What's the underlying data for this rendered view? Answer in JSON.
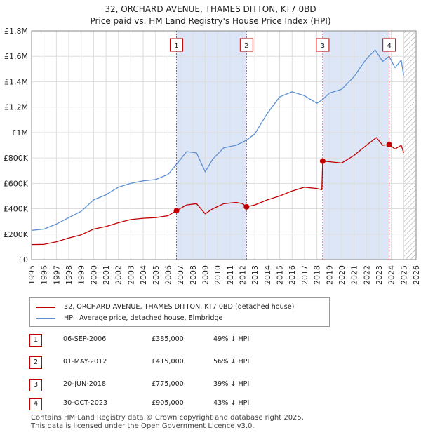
{
  "chart_data": {
    "type": "line",
    "title": "32, ORCHARD AVENUE, THAMES DITTON, KT7 0BD",
    "subtitle": "Price paid vs. HM Land Registry's House Price Index (HPI)",
    "xlim": [
      1995,
      2026
    ],
    "ylim": [
      0,
      1800000
    ],
    "x_ticks": [
      "1995",
      "1996",
      "1997",
      "1998",
      "1999",
      "2000",
      "2001",
      "2002",
      "2003",
      "2004",
      "2005",
      "2006",
      "2007",
      "2008",
      "2009",
      "2010",
      "2011",
      "2012",
      "2013",
      "2014",
      "2015",
      "2016",
      "2017",
      "2018",
      "2019",
      "2020",
      "2021",
      "2022",
      "2023",
      "2024",
      "2025",
      "2026"
    ],
    "y_ticks": [
      {
        "value": 0,
        "label": "£0"
      },
      {
        "value": 200000,
        "label": "£200K"
      },
      {
        "value": 400000,
        "label": "£400K"
      },
      {
        "value": 600000,
        "label": "£600K"
      },
      {
        "value": 800000,
        "label": "£800K"
      },
      {
        "value": 1000000,
        "label": "£1M"
      },
      {
        "value": 1200000,
        "label": "£1.2M"
      },
      {
        "value": 1400000,
        "label": "£1.4M"
      },
      {
        "value": 1600000,
        "label": "£1.6M"
      },
      {
        "value": 1800000,
        "label": "£1.8M"
      }
    ],
    "shaded_ranges": [
      [
        2006.68,
        2012.33
      ],
      [
        2018.47,
        2023.83
      ]
    ],
    "forecast_from": 2025.0,
    "series": [
      {
        "name": "32, ORCHARD AVENUE, THAMES DITTON, KT7 0BD (detached house)",
        "color": "#c00000",
        "points": [
          [
            1995.0,
            118000
          ],
          [
            1996.0,
            120000
          ],
          [
            1997.0,
            140000
          ],
          [
            1998.0,
            170000
          ],
          [
            1999.0,
            195000
          ],
          [
            2000.0,
            240000
          ],
          [
            2001.0,
            260000
          ],
          [
            2002.0,
            290000
          ],
          [
            2003.0,
            315000
          ],
          [
            2004.0,
            325000
          ],
          [
            2005.0,
            330000
          ],
          [
            2006.0,
            345000
          ],
          [
            2006.68,
            385000
          ],
          [
            2007.5,
            430000
          ],
          [
            2008.3,
            440000
          ],
          [
            2009.0,
            360000
          ],
          [
            2009.6,
            400000
          ],
          [
            2010.5,
            440000
          ],
          [
            2011.5,
            450000
          ],
          [
            2012.0,
            440000
          ],
          [
            2012.33,
            415000
          ],
          [
            2013.0,
            430000
          ],
          [
            2014.0,
            470000
          ],
          [
            2015.0,
            500000
          ],
          [
            2016.0,
            540000
          ],
          [
            2017.0,
            570000
          ],
          [
            2018.0,
            560000
          ],
          [
            2018.4,
            550000
          ],
          [
            2018.47,
            775000
          ],
          [
            2019.0,
            770000
          ],
          [
            2020.0,
            760000
          ],
          [
            2021.0,
            820000
          ],
          [
            2022.0,
            900000
          ],
          [
            2022.8,
            960000
          ],
          [
            2023.3,
            900000
          ],
          [
            2023.83,
            905000
          ],
          [
            2024.3,
            870000
          ],
          [
            2024.8,
            900000
          ],
          [
            2025.0,
            840000
          ]
        ]
      },
      {
        "name": "HPI: Average price, detached house, Elmbridge",
        "color": "#5b8fd1",
        "points": [
          [
            1995.0,
            230000
          ],
          [
            1996.0,
            240000
          ],
          [
            1997.0,
            280000
          ],
          [
            1998.0,
            330000
          ],
          [
            1999.0,
            380000
          ],
          [
            2000.0,
            470000
          ],
          [
            2001.0,
            510000
          ],
          [
            2002.0,
            570000
          ],
          [
            2003.0,
            600000
          ],
          [
            2004.0,
            620000
          ],
          [
            2005.0,
            630000
          ],
          [
            2006.0,
            670000
          ],
          [
            2006.68,
            750000
          ],
          [
            2007.5,
            850000
          ],
          [
            2008.3,
            840000
          ],
          [
            2009.0,
            690000
          ],
          [
            2009.6,
            790000
          ],
          [
            2010.5,
            880000
          ],
          [
            2011.5,
            900000
          ],
          [
            2012.33,
            940000
          ],
          [
            2013.0,
            990000
          ],
          [
            2014.0,
            1150000
          ],
          [
            2015.0,
            1280000
          ],
          [
            2016.0,
            1320000
          ],
          [
            2017.0,
            1290000
          ],
          [
            2018.0,
            1230000
          ],
          [
            2018.47,
            1260000
          ],
          [
            2019.0,
            1310000
          ],
          [
            2020.0,
            1340000
          ],
          [
            2021.0,
            1440000
          ],
          [
            2022.0,
            1580000
          ],
          [
            2022.7,
            1650000
          ],
          [
            2023.3,
            1560000
          ],
          [
            2023.83,
            1600000
          ],
          [
            2024.3,
            1510000
          ],
          [
            2024.8,
            1570000
          ],
          [
            2025.0,
            1450000
          ]
        ]
      }
    ],
    "sales": [
      {
        "id": "1",
        "date": "06-SEP-2006",
        "price": "£385,000",
        "hpi": "49% ↓ HPI",
        "x": 2006.68,
        "y": 385000
      },
      {
        "id": "2",
        "date": "01-MAY-2012",
        "price": "£415,000",
        "hpi": "56% ↓ HPI",
        "x": 2012.33,
        "y": 415000
      },
      {
        "id": "3",
        "date": "20-JUN-2018",
        "price": "£775,000",
        "hpi": "39% ↓ HPI",
        "x": 2018.47,
        "y": 775000
      },
      {
        "id": "4",
        "date": "30-OCT-2023",
        "price": "£905,000",
        "hpi": "43% ↓ HPI",
        "x": 2023.83,
        "y": 905000
      }
    ]
  },
  "colors": {
    "property": "#c00000",
    "hpi": "#5b8fd1",
    "shade": "#dde6f7",
    "grid": "#dddddd"
  },
  "legend": {
    "property_label": "32, ORCHARD AVENUE, THAMES DITTON, KT7 0BD (detached house)",
    "hpi_label": "HPI: Average price, detached house, Elmbridge"
  },
  "footer": {
    "line1": "Contains HM Land Registry data © Crown copyright and database right 2025.",
    "line2": "This data is licensed under the Open Government Licence v3.0."
  }
}
